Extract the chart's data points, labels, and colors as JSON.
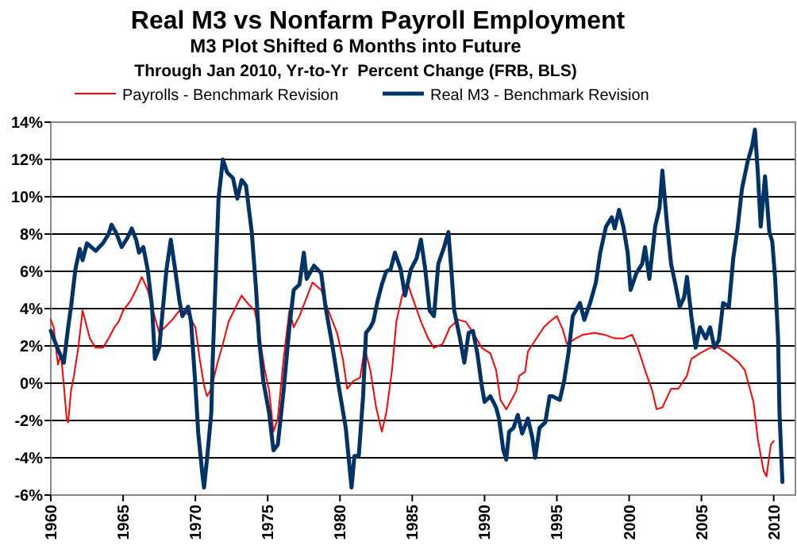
{
  "chart_data": {
    "type": "line",
    "title": "Real M3 vs Nonfarm Payroll Employment",
    "subtitle": "M3 Plot Shifted 6 Months into Future",
    "annotations": [
      "Through Jan 2010, Yr-to-Yr  Percent Change (FRB, BLS)"
    ],
    "xlim": [
      1960,
      2011.5
    ],
    "xticks": [
      1960,
      1965,
      1970,
      1975,
      1980,
      1985,
      1990,
      1995,
      2000,
      2005,
      2010
    ],
    "ylim": [
      -6,
      14
    ],
    "yticks": [
      {
        "value": -6,
        "label": "-6%"
      },
      {
        "value": -4,
        "label": "-4%"
      },
      {
        "value": -2,
        "label": "-2%"
      },
      {
        "value": 0,
        "label": "0%"
      },
      {
        "value": 2,
        "label": "2%"
      },
      {
        "value": 4,
        "label": "4%"
      },
      {
        "value": 6,
        "label": "6%"
      },
      {
        "value": 8,
        "label": "8%"
      },
      {
        "value": 10,
        "label": "10%"
      },
      {
        "value": 12,
        "label": "12%"
      },
      {
        "value": 14,
        "label": "14%"
      }
    ],
    "grid": "y",
    "legend": "top",
    "line_style": "solid",
    "marker": "none",
    "series": [
      {
        "name": "Payrolls - Benchmark Revision",
        "color": "#ff0000",
        "x": [
          1960.0,
          1960.2,
          1960.4,
          1960.5,
          1960.7,
          1960.9,
          1961.1,
          1961.2,
          1961.4,
          1961.6,
          1961.9,
          1962.2,
          1962.4,
          1962.7,
          1963.1,
          1963.6,
          1964.0,
          1964.4,
          1964.7,
          1965.0,
          1965.5,
          1965.9,
          1966.3,
          1966.7,
          1967.0,
          1967.5,
          1967.9,
          1968.4,
          1968.9,
          1969.5,
          1970.0,
          1970.3,
          1970.6,
          1970.8,
          1971.1,
          1971.5,
          1971.9,
          1972.3,
          1972.8,
          1973.2,
          1973.6,
          1974.1,
          1974.4,
          1974.8,
          1975.1,
          1975.4,
          1975.7,
          1976.1,
          1976.5,
          1976.8,
          1977.2,
          1977.6,
          1978.1,
          1978.7,
          1979.2,
          1979.8,
          1980.2,
          1980.5,
          1980.9,
          1981.4,
          1981.7,
          1982.1,
          1982.5,
          1982.9,
          1983.2,
          1983.6,
          1983.9,
          1984.3,
          1984.7,
          1985.1,
          1985.6,
          1986.1,
          1986.5,
          1987.1,
          1987.6,
          1988.2,
          1988.7,
          1989.3,
          1989.8,
          1990.4,
          1990.8,
          1991.1,
          1991.5,
          1991.8,
          1992.2,
          1992.4,
          1992.8,
          1993.0,
          1993.5,
          1994.1,
          1994.5,
          1995.0,
          1995.4,
          1995.7,
          1996.3,
          1996.8,
          1997.6,
          1998.3,
          1999.0,
          1999.6,
          2000.2,
          2000.6,
          2001.1,
          2001.6,
          2001.9,
          2002.3,
          2002.9,
          2003.4,
          2004.0,
          2004.3,
          2004.9,
          2005.6,
          2006.2,
          2006.8,
          2007.6,
          2008.0,
          2008.6,
          2008.9,
          2009.3,
          2009.5,
          2009.8,
          2010.0
        ],
        "values": [
          3.4,
          3.0,
          1.6,
          1.0,
          1.6,
          -0.1,
          -1.9,
          -2.1,
          -0.4,
          0.4,
          1.9,
          3.9,
          3.3,
          2.4,
          1.9,
          1.9,
          2.4,
          3.0,
          3.3,
          3.9,
          4.4,
          5.0,
          5.7,
          5.0,
          4.1,
          2.7,
          3.0,
          3.4,
          3.9,
          3.7,
          3.0,
          1.3,
          -0.1,
          -0.7,
          -0.3,
          1.0,
          2.1,
          3.3,
          4.1,
          4.7,
          4.3,
          3.9,
          2.7,
          0.7,
          -0.4,
          -2.6,
          -1.9,
          1.3,
          3.9,
          3.0,
          3.6,
          4.4,
          5.4,
          5.0,
          3.9,
          2.7,
          1.3,
          -0.3,
          0.1,
          0.3,
          1.9,
          0.7,
          -1.3,
          -2.6,
          -1.6,
          0.7,
          3.3,
          4.7,
          5.3,
          4.4,
          3.3,
          2.4,
          1.9,
          2.1,
          3.0,
          3.4,
          3.3,
          2.6,
          1.9,
          1.6,
          0.7,
          -0.9,
          -1.4,
          -1.0,
          -0.4,
          0.4,
          0.6,
          1.7,
          2.3,
          3.0,
          3.3,
          3.6,
          2.9,
          2.1,
          2.4,
          2.6,
          2.7,
          2.6,
          2.4,
          2.4,
          2.6,
          1.9,
          0.7,
          -0.4,
          -1.4,
          -1.3,
          -0.3,
          -0.3,
          0.4,
          1.3,
          1.6,
          1.9,
          1.9,
          1.6,
          1.1,
          0.7,
          -1.0,
          -3.0,
          -4.7,
          -5.0,
          -3.3,
          -3.1
        ]
      },
      {
        "name": "Real M3 - Benchmark Revision",
        "color": "#003366",
        "x": [
          1960.0,
          1960.5,
          1960.9,
          1961.2,
          1961.4,
          1961.7,
          1962.0,
          1962.2,
          1962.5,
          1963.1,
          1963.6,
          1964.0,
          1964.2,
          1964.5,
          1964.9,
          1965.3,
          1965.6,
          1965.9,
          1966.1,
          1966.4,
          1966.7,
          1967.0,
          1967.2,
          1967.5,
          1967.8,
          1968.0,
          1968.3,
          1968.6,
          1968.9,
          1969.1,
          1969.5,
          1969.7,
          1970.0,
          1970.2,
          1970.5,
          1970.6,
          1970.8,
          1971.1,
          1971.2,
          1971.4,
          1971.6,
          1971.9,
          1972.2,
          1972.6,
          1972.9,
          1973.2,
          1973.5,
          1973.9,
          1974.2,
          1974.4,
          1974.7,
          1975.1,
          1975.4,
          1975.7,
          1976.1,
          1976.5,
          1976.8,
          1977.2,
          1977.5,
          1977.7,
          1978.2,
          1978.7,
          1979.0,
          1979.5,
          1979.9,
          1980.4,
          1980.8,
          1981.0,
          1981.3,
          1981.6,
          1981.8,
          1982.1,
          1982.3,
          1982.6,
          1982.9,
          1983.2,
          1983.5,
          1983.8,
          1984.2,
          1984.5,
          1984.9,
          1985.3,
          1985.6,
          1985.9,
          1986.2,
          1986.5,
          1986.8,
          1987.2,
          1987.5,
          1987.7,
          1987.9,
          1988.3,
          1988.6,
          1988.9,
          1989.2,
          1989.5,
          1989.8,
          1990.0,
          1990.4,
          1990.8,
          1991.0,
          1991.3,
          1991.5,
          1991.7,
          1992.0,
          1992.3,
          1992.6,
          1993.0,
          1993.3,
          1993.5,
          1993.8,
          1994.2,
          1994.5,
          1994.7,
          1995.2,
          1995.5,
          1995.8,
          1996.1,
          1996.6,
          1996.9,
          1997.3,
          1997.7,
          1998.0,
          1998.4,
          1998.8,
          1999.0,
          1999.3,
          1999.6,
          1999.9,
          2000.1,
          2000.5,
          2000.9,
          2001.1,
          2001.4,
          2001.8,
          2002.1,
          2002.3,
          2002.6,
          2002.9,
          2003.2,
          2003.5,
          2003.8,
          2004.0,
          2004.3,
          2004.6,
          2004.9,
          2005.3,
          2005.6,
          2005.9,
          2006.2,
          2006.5,
          2006.9,
          2007.2,
          2007.5,
          2007.8,
          2008.2,
          2008.5,
          2008.7,
          2008.9,
          2009.1,
          2009.4,
          2009.7,
          2009.9,
          2010.1,
          2010.3,
          2010.4,
          2010.6
        ],
        "values": [
          2.8,
          1.8,
          1.1,
          3.0,
          4.1,
          6.1,
          7.2,
          6.6,
          7.5,
          7.1,
          7.5,
          8.0,
          8.5,
          8.1,
          7.3,
          7.8,
          8.3,
          7.7,
          7.0,
          7.3,
          6.1,
          4.1,
          1.3,
          1.9,
          4.4,
          6.1,
          7.7,
          6.1,
          4.4,
          3.6,
          4.1,
          3.3,
          -0.1,
          -2.7,
          -5.0,
          -5.6,
          -4.1,
          -1.6,
          1.3,
          5.6,
          9.9,
          12.0,
          11.3,
          11.0,
          9.9,
          10.9,
          10.6,
          8.1,
          5.0,
          2.4,
          0.1,
          -1.6,
          -3.6,
          -3.3,
          -0.4,
          3.0,
          5.0,
          5.3,
          7.0,
          5.6,
          6.3,
          5.9,
          4.1,
          1.9,
          -0.1,
          -2.4,
          -5.6,
          -3.9,
          -3.9,
          -0.7,
          2.7,
          3.0,
          3.3,
          4.4,
          5.3,
          6.0,
          6.1,
          7.0,
          6.1,
          4.7,
          6.1,
          6.7,
          7.7,
          6.1,
          3.9,
          3.6,
          6.4,
          7.3,
          8.1,
          6.1,
          3.9,
          2.4,
          1.1,
          2.7,
          2.8,
          1.6,
          -0.1,
          -1.0,
          -0.7,
          -1.3,
          -1.9,
          -3.6,
          -4.1,
          -2.6,
          -2.4,
          -1.7,
          -2.7,
          -1.9,
          -2.9,
          -4.0,
          -2.4,
          -2.1,
          -0.7,
          -0.7,
          -0.9,
          0.1,
          1.6,
          3.6,
          4.3,
          3.4,
          4.3,
          5.4,
          7.0,
          8.4,
          8.9,
          8.3,
          9.3,
          8.4,
          7.0,
          5.0,
          5.9,
          6.4,
          7.3,
          5.6,
          8.4,
          9.4,
          11.4,
          8.7,
          6.4,
          5.3,
          4.1,
          4.6,
          5.7,
          3.6,
          1.9,
          3.0,
          2.4,
          3.0,
          1.9,
          2.3,
          4.3,
          4.1,
          6.7,
          8.3,
          10.4,
          11.9,
          12.7,
          13.6,
          11.3,
          8.4,
          11.1,
          8.1,
          7.6,
          5.6,
          2.4,
          -1.6,
          -5.3
        ]
      }
    ]
  }
}
